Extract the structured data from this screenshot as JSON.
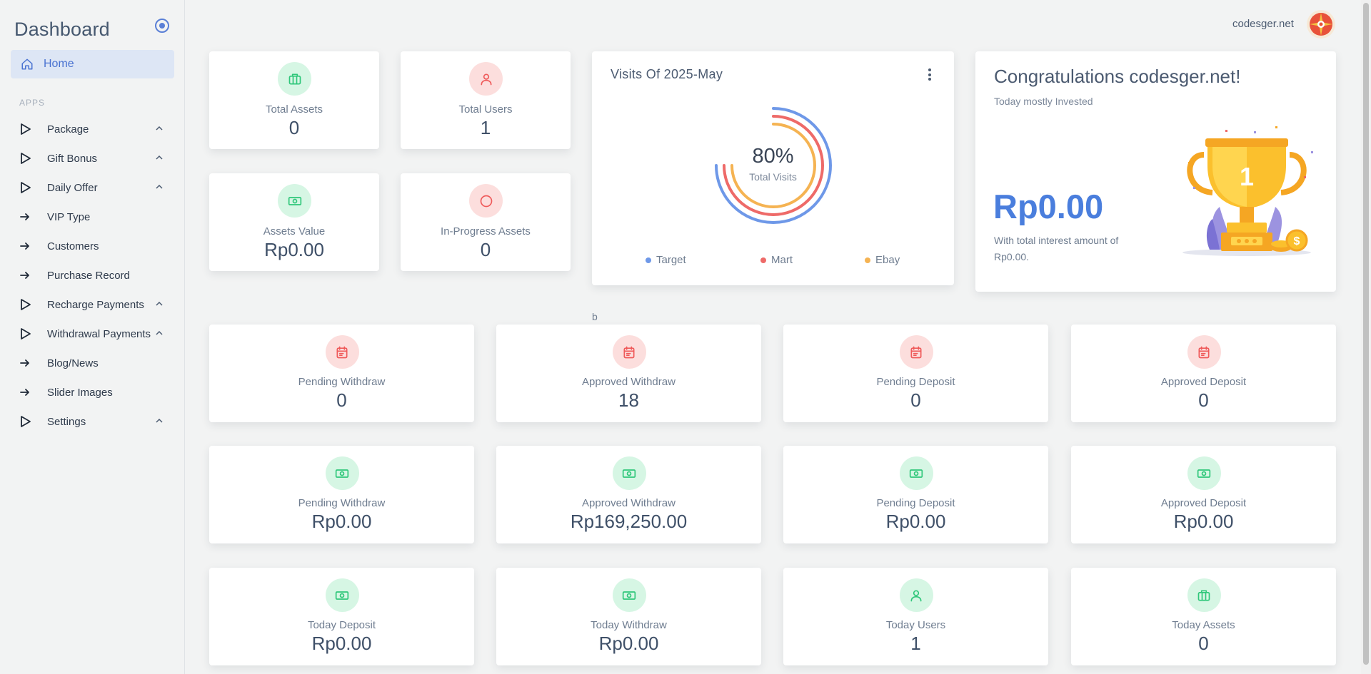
{
  "sidebar": {
    "brand": "Dashboard",
    "home_label": "Home",
    "section_header": "APPS",
    "items": [
      {
        "label": "Package",
        "icon": "play-outline-icon",
        "chevron": true
      },
      {
        "label": "Gift Bonus",
        "icon": "play-outline-icon",
        "chevron": true
      },
      {
        "label": "Daily Offer",
        "icon": "play-outline-icon",
        "chevron": true
      },
      {
        "label": "VIP Type",
        "icon": "arrow-right-icon",
        "chevron": false
      },
      {
        "label": "Customers",
        "icon": "arrow-right-icon",
        "chevron": false
      },
      {
        "label": "Purchase Record",
        "icon": "arrow-right-icon",
        "chevron": false
      },
      {
        "label": "Recharge Payments",
        "icon": "play-outline-icon",
        "chevron": true
      },
      {
        "label": "Withdrawal Payments",
        "icon": "play-outline-icon",
        "chevron": true
      },
      {
        "label": "Blog/News",
        "icon": "arrow-right-icon",
        "chevron": false
      },
      {
        "label": "Slider Images",
        "icon": "arrow-right-icon",
        "chevron": false
      },
      {
        "label": "Settings",
        "icon": "play-outline-icon",
        "chevron": true
      }
    ]
  },
  "header": {
    "username": "codesger.net"
  },
  "top_stats": [
    {
      "label": "Total Assets",
      "value": "0",
      "icon": "briefcase-icon",
      "tone": "green"
    },
    {
      "label": "Total Users",
      "value": "1",
      "icon": "user-icon",
      "tone": "red"
    },
    {
      "label": "Assets Value",
      "value": "Rp0.00",
      "icon": "cash-icon",
      "tone": "green"
    },
    {
      "label": "In-Progress Assets",
      "value": "0",
      "icon": "circle-icon",
      "tone": "red"
    }
  ],
  "visits": {
    "title": "Visits Of 2025-May",
    "center_value": "80%",
    "center_label": "Total Visits",
    "legend": [
      {
        "label": "Target",
        "color": "#6e98e8"
      },
      {
        "label": "Mart",
        "color": "#ee6a68"
      },
      {
        "label": "Ebay",
        "color": "#f5b352"
      }
    ]
  },
  "congrats": {
    "title": "Congratulations codesger.net!",
    "subtitle": "Today mostly Invested",
    "amount": "Rp0.00",
    "note": "With total interest amount of Rp0.00.",
    "trophy_number": "1"
  },
  "stray_text": "b",
  "grid_stats": [
    {
      "label": "Pending Withdraw",
      "value": "0",
      "icon": "calendar-icon",
      "tone": "red"
    },
    {
      "label": "Approved Withdraw",
      "value": "18",
      "icon": "calendar-icon",
      "tone": "red"
    },
    {
      "label": "Pending Deposit",
      "value": "0",
      "icon": "calendar-icon",
      "tone": "red"
    },
    {
      "label": "Approved Deposit",
      "value": "0",
      "icon": "calendar-icon",
      "tone": "red"
    },
    {
      "label": "Pending Withdraw",
      "value": "Rp0.00",
      "icon": "cash-icon",
      "tone": "green"
    },
    {
      "label": "Approved Withdraw",
      "value": "Rp169,250.00",
      "icon": "cash-icon",
      "tone": "green"
    },
    {
      "label": "Pending Deposit",
      "value": "Rp0.00",
      "icon": "cash-icon",
      "tone": "green"
    },
    {
      "label": "Approved Deposit",
      "value": "Rp0.00",
      "icon": "cash-icon",
      "tone": "green"
    },
    {
      "label": "Today Deposit",
      "value": "Rp0.00",
      "icon": "cash-icon",
      "tone": "green"
    },
    {
      "label": "Today Withdraw",
      "value": "Rp0.00",
      "icon": "cash-icon",
      "tone": "green"
    },
    {
      "label": "Today Users",
      "value": "1",
      "icon": "user-icon",
      "tone": "green"
    },
    {
      "label": "Today Assets",
      "value": "0",
      "icon": "briefcase-icon",
      "tone": "green"
    }
  ]
}
